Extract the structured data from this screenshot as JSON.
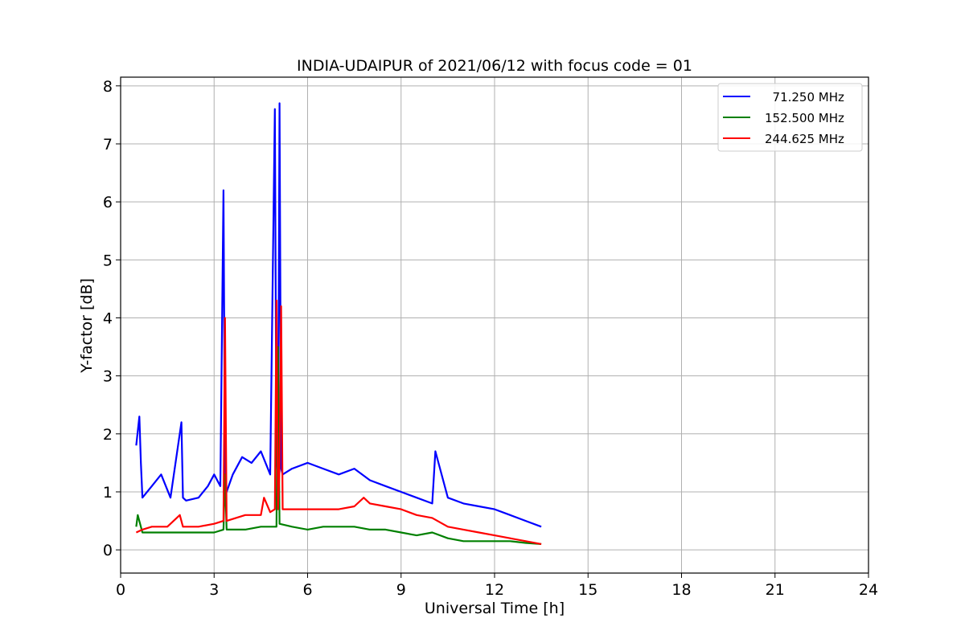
{
  "chart_data": {
    "type": "line",
    "title": "INDIA-UDAIPUR of 2021/06/12 with focus code = 01",
    "xlabel": "Universal Time [h]",
    "ylabel": "Y-factor [dB]",
    "xlim": [
      0,
      24
    ],
    "ylim": [
      -0.4,
      8.15
    ],
    "xticks": [
      0,
      3,
      6,
      9,
      12,
      15,
      18,
      21,
      24
    ],
    "yticks": [
      0,
      1,
      2,
      3,
      4,
      5,
      6,
      7,
      8
    ],
    "grid": true,
    "legend_position": "top-right",
    "series": [
      {
        "name": "  71.250 MHz",
        "color": "#0000ff",
        "x": [
          0.5,
          0.6,
          0.65,
          0.7,
          1.0,
          1.3,
          1.6,
          1.95,
          2.0,
          2.1,
          2.5,
          2.8,
          3.0,
          3.2,
          3.3,
          3.35,
          3.4,
          3.6,
          3.9,
          4.2,
          4.5,
          4.8,
          4.95,
          5.0,
          5.05,
          5.1,
          5.15,
          5.2,
          5.5,
          6.0,
          6.5,
          7.0,
          7.5,
          8.0,
          8.5,
          9.0,
          9.5,
          10.0,
          10.1,
          10.5,
          11.0,
          11.5,
          12.0,
          12.5,
          13.0,
          13.5
        ],
        "values": [
          1.8,
          2.3,
          1.5,
          0.9,
          1.1,
          1.3,
          0.9,
          2.2,
          0.9,
          0.85,
          0.9,
          1.1,
          1.3,
          1.1,
          6.2,
          1.4,
          1.0,
          1.3,
          1.6,
          1.5,
          1.7,
          1.3,
          7.6,
          1.5,
          1.2,
          7.7,
          1.4,
          1.3,
          1.4,
          1.5,
          1.4,
          1.3,
          1.4,
          1.2,
          1.1,
          1.0,
          0.9,
          0.8,
          1.7,
          0.9,
          0.8,
          0.75,
          0.7,
          0.6,
          0.5,
          0.4
        ]
      },
      {
        "name": "152.500 MHz",
        "color": "#008000",
        "x": [
          0.5,
          0.55,
          0.7,
          1.0,
          1.5,
          2.0,
          2.5,
          3.0,
          3.3,
          3.35,
          3.4,
          4.0,
          4.5,
          5.0,
          5.05,
          5.1,
          5.5,
          6.0,
          6.5,
          7.0,
          7.5,
          8.0,
          8.5,
          9.0,
          9.5,
          10.0,
          10.5,
          11.0,
          11.5,
          12.0,
          12.5,
          13.0,
          13.5
        ],
        "values": [
          0.4,
          0.6,
          0.3,
          0.3,
          0.3,
          0.3,
          0.3,
          0.3,
          0.35,
          1.3,
          0.35,
          0.35,
          0.4,
          0.4,
          3.5,
          0.45,
          0.4,
          0.35,
          0.4,
          0.4,
          0.4,
          0.35,
          0.35,
          0.3,
          0.25,
          0.3,
          0.2,
          0.15,
          0.15,
          0.15,
          0.15,
          0.12,
          0.1
        ]
      },
      {
        "name": "244.625 MHz",
        "color": "#ff0000",
        "x": [
          0.5,
          0.7,
          1.0,
          1.5,
          1.9,
          2.0,
          2.5,
          3.0,
          3.3,
          3.35,
          3.4,
          3.7,
          4.0,
          4.5,
          4.6,
          4.8,
          4.95,
          5.0,
          5.05,
          5.1,
          5.15,
          5.2,
          5.5,
          6.0,
          6.5,
          7.0,
          7.5,
          7.8,
          8.0,
          8.5,
          9.0,
          9.5,
          10.0,
          10.5,
          11.0,
          11.5,
          12.0,
          12.5,
          13.0,
          13.5
        ],
        "values": [
          0.3,
          0.35,
          0.4,
          0.4,
          0.6,
          0.4,
          0.4,
          0.45,
          0.5,
          4.0,
          0.5,
          0.55,
          0.6,
          0.6,
          0.9,
          0.65,
          0.7,
          4.3,
          0.7,
          1.4,
          4.2,
          0.7,
          0.7,
          0.7,
          0.7,
          0.7,
          0.75,
          0.9,
          0.8,
          0.75,
          0.7,
          0.6,
          0.55,
          0.4,
          0.35,
          0.3,
          0.25,
          0.2,
          0.15,
          0.1
        ]
      }
    ]
  }
}
